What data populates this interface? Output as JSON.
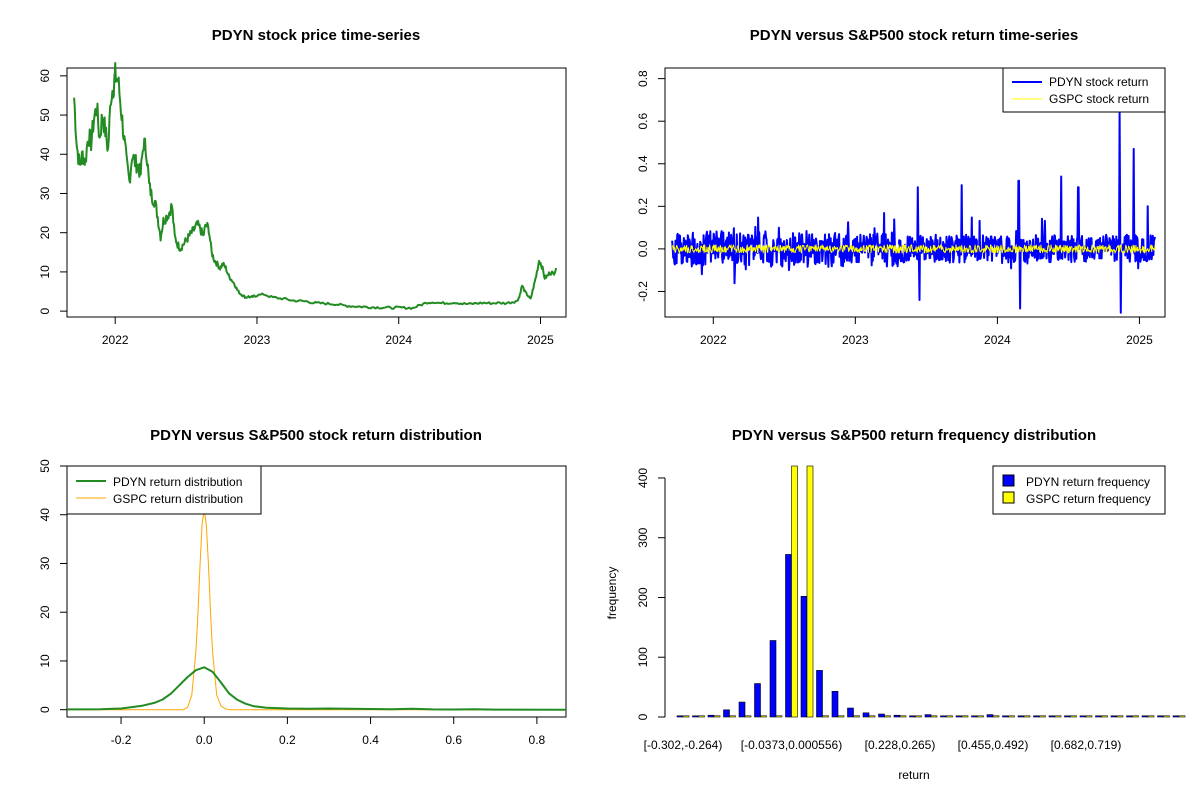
{
  "colors": {
    "pdyn_price": "#228B22",
    "pdyn_return": "#0000FF",
    "gspc_return": "#FFFF00",
    "pdyn_density": "#228B22",
    "gspc_density": "#FFA500",
    "pdyn_bar": "#0000FF",
    "gspc_bar": "#FFFF00"
  },
  "chart_data": [
    {
      "id": "price",
      "type": "line",
      "title": "PDYN stock price time-series",
      "xlabel": "",
      "ylabel": "",
      "xlim": [
        2021.66,
        2025.18
      ],
      "ylim": [
        -1.5,
        62
      ],
      "x_ticks": [
        2022,
        2023,
        2024,
        2025
      ],
      "x_tick_labels": [
        "2022",
        "2023",
        "2024",
        "2025"
      ],
      "y_ticks": [
        0,
        10,
        20,
        30,
        40,
        50,
        60
      ],
      "y_tick_labels": [
        "0",
        "10",
        "20",
        "30",
        "40",
        "50",
        "60"
      ],
      "series": [
        {
          "name": "PDYN price",
          "x": [
            2021.71,
            2021.73,
            2021.75,
            2021.77,
            2021.79,
            2021.81,
            2021.83,
            2021.85,
            2021.87,
            2021.89,
            2021.91,
            2021.93,
            2021.95,
            2021.97,
            2021.99,
            2022.0,
            2022.02,
            2022.04,
            2022.06,
            2022.08,
            2022.1,
            2022.12,
            2022.14,
            2022.16,
            2022.18,
            2022.2,
            2022.22,
            2022.24,
            2022.26,
            2022.28,
            2022.3,
            2022.32,
            2022.34,
            2022.36,
            2022.38,
            2022.4,
            2022.42,
            2022.44,
            2022.46,
            2022.48,
            2022.5,
            2022.52,
            2022.54,
            2022.56,
            2022.58,
            2022.6,
            2022.62,
            2022.64,
            2022.66,
            2022.68,
            2022.7,
            2022.72,
            2022.74,
            2022.76,
            2022.78,
            2022.8,
            2022.82,
            2022.84,
            2022.86,
            2022.88,
            2022.9,
            2022.92,
            2022.94,
            2022.96,
            2022.98,
            2023.0,
            2023.05,
            2023.1,
            2023.15,
            2023.2,
            2023.25,
            2023.3,
            2023.35,
            2023.4,
            2023.45,
            2023.5,
            2023.55,
            2023.6,
            2023.65,
            2023.7,
            2023.75,
            2023.8,
            2023.85,
            2023.9,
            2023.95,
            2024.0,
            2024.05,
            2024.1,
            2024.15,
            2024.2,
            2024.25,
            2024.3,
            2024.35,
            2024.4,
            2024.45,
            2024.5,
            2024.55,
            2024.6,
            2024.65,
            2024.7,
            2024.75,
            2024.8,
            2024.83,
            2024.85,
            2024.87,
            2024.89,
            2024.91,
            2024.93,
            2024.95,
            2024.97,
            2024.99,
            2025.01,
            2025.03,
            2025.05,
            2025.07,
            2025.09,
            2025.11
          ],
          "values": [
            54.5,
            42,
            37,
            40,
            38,
            45,
            43,
            49,
            52,
            44,
            50,
            46,
            41,
            55,
            58,
            60,
            59,
            52,
            45,
            38,
            33,
            40,
            38,
            37,
            35,
            43,
            41,
            32,
            29,
            28,
            24,
            19,
            23,
            24,
            25,
            27,
            19,
            17,
            16,
            17,
            18,
            19,
            20,
            21,
            22,
            21,
            19,
            22,
            21,
            15,
            13,
            12,
            11,
            12,
            11,
            9,
            8,
            7,
            5.5,
            4.5,
            4,
            3.5,
            3.7,
            3.5,
            3.8,
            4.0,
            4.3,
            3.6,
            3.3,
            3.1,
            2.7,
            2.6,
            2.5,
            2.1,
            2.0,
            1.9,
            1.8,
            1.5,
            1.3,
            1.2,
            1.1,
            1.0,
            0.95,
            0.9,
            0.85,
            0.9,
            0.85,
            0.8,
            1.5,
            2.2,
            2.3,
            2.0,
            2.1,
            2.2,
            1.9,
            1.8,
            2.0,
            2.1,
            2.0,
            2.1,
            2.0,
            2.3,
            2.5,
            3.5,
            6.5,
            5.0,
            4.0,
            3.0,
            6.0,
            9.0,
            13.0,
            11.5,
            8.5,
            9.0,
            10.0,
            9.5,
            11.0
          ]
        }
      ]
    },
    {
      "id": "returns_ts",
      "type": "line",
      "title": "PDYN versus S&P500 stock return time-series",
      "xlabel": "",
      "ylabel": "",
      "xlim": [
        2021.66,
        2025.18
      ],
      "ylim": [
        -0.32,
        0.85
      ],
      "x_ticks": [
        2022,
        2023,
        2024,
        2025
      ],
      "x_tick_labels": [
        "2022",
        "2023",
        "2024",
        "2025"
      ],
      "y_ticks": [
        -0.2,
        0.0,
        0.2,
        0.4,
        0.6,
        0.8
      ],
      "y_tick_labels": [
        "-0.2",
        "0.0",
        "0.2",
        "0.4",
        "0.6",
        "0.8"
      ],
      "x_range": [
        2021.71,
        2025.11
      ],
      "legend": [
        "PDYN stock return",
        "GSPC stock return"
      ],
      "legend_position": "top-right",
      "spikes": [
        {
          "x": 2023.44,
          "y": 0.29
        },
        {
          "x": 2023.45,
          "y": -0.24
        },
        {
          "x": 2023.75,
          "y": 0.3
        },
        {
          "x": 2024.15,
          "y": 0.32
        },
        {
          "x": 2024.16,
          "y": -0.28
        },
        {
          "x": 2024.45,
          "y": 0.34
        },
        {
          "x": 2024.57,
          "y": 0.29
        },
        {
          "x": 2024.86,
          "y": 0.65
        },
        {
          "x": 2024.87,
          "y": -0.3
        },
        {
          "x": 2024.96,
          "y": 0.47
        },
        {
          "x": 2025.06,
          "y": 0.2
        }
      ],
      "series": [
        {
          "name": "PDYN stock return",
          "typical_volatility": 0.06,
          "mean": 0.0
        },
        {
          "name": "GSPC stock return",
          "typical_volatility": 0.012,
          "mean": 0.0
        }
      ]
    },
    {
      "id": "density",
      "type": "line",
      "title": "PDYN versus S&P500 stock return distribution",
      "xlabel": "",
      "ylabel": "",
      "xlim": [
        -0.33,
        0.87
      ],
      "ylim": [
        -1.5,
        50
      ],
      "x_ticks": [
        -0.2,
        0.0,
        0.2,
        0.4,
        0.6,
        0.8
      ],
      "x_tick_labels": [
        "-0.2",
        "0.0",
        "0.2",
        "0.4",
        "0.6",
        "0.8"
      ],
      "y_ticks": [
        0,
        10,
        20,
        30,
        40,
        50
      ],
      "y_tick_labels": [
        "0",
        "10",
        "20",
        "30",
        "40",
        "50"
      ],
      "legend": [
        "PDYN return distribution",
        "GSPC return distribution"
      ],
      "legend_position": "top-left",
      "series": [
        {
          "name": "PDYN return distribution",
          "x": [
            -0.33,
            -0.25,
            -0.2,
            -0.15,
            -0.12,
            -0.1,
            -0.08,
            -0.06,
            -0.04,
            -0.02,
            0.0,
            0.02,
            0.04,
            0.06,
            0.08,
            0.1,
            0.12,
            0.15,
            0.2,
            0.25,
            0.3,
            0.35,
            0.4,
            0.45,
            0.5,
            0.55,
            0.6,
            0.65,
            0.7,
            0.87
          ],
          "values": [
            0.05,
            0.1,
            0.25,
            0.8,
            1.4,
            2.1,
            3.3,
            5.0,
            6.7,
            8.1,
            8.7,
            7.8,
            5.6,
            3.3,
            2.0,
            1.2,
            0.7,
            0.4,
            0.25,
            0.18,
            0.25,
            0.2,
            0.15,
            0.1,
            0.2,
            0.05,
            0.03,
            0.08,
            0.02,
            0.0
          ]
        },
        {
          "name": "GSPC return distribution",
          "x": [
            -0.33,
            -0.05,
            -0.04,
            -0.03,
            -0.02,
            -0.015,
            -0.01,
            -0.005,
            0.0,
            0.005,
            0.01,
            0.015,
            0.02,
            0.03,
            0.04,
            0.05,
            0.06,
            0.87
          ],
          "values": [
            0.0,
            0.0,
            0.5,
            3.0,
            12.0,
            20.0,
            30.0,
            38.0,
            41.0,
            38.0,
            30.0,
            20.0,
            12.0,
            3.0,
            0.8,
            0.2,
            0.0,
            0.0
          ]
        }
      ]
    },
    {
      "id": "frequency",
      "type": "bar",
      "title": "PDYN versus S&P500 return frequency distribution",
      "xlabel": "return",
      "ylabel": "frequency",
      "ylim": [
        0,
        420
      ],
      "y_ticks": [
        0,
        100,
        200,
        300,
        400
      ],
      "y_tick_labels": [
        "0",
        "100",
        "200",
        "300",
        "400"
      ],
      "x_tick_labels": [
        "[-0.302,-0.264)",
        "[-0.0373,0.000556)",
        "[0.228,0.265)",
        "[0.455,0.492)",
        "[0.682,0.719)"
      ],
      "x_tick_bins": [
        0,
        7,
        14,
        20,
        26
      ],
      "legend": [
        "PDYN return frequency",
        "GSPC return frequency"
      ],
      "legend_position": "top-right",
      "series": [
        {
          "name": "PDYN return frequency",
          "values": [
            2,
            1,
            3,
            12,
            25,
            56,
            128,
            272,
            202,
            78,
            43,
            15,
            7,
            5,
            3,
            2,
            4,
            1,
            1,
            2,
            4,
            1,
            1,
            2,
            1,
            1,
            1,
            1,
            1,
            1,
            1,
            1,
            1
          ]
        },
        {
          "name": "GSPC return frequency",
          "values": [
            0,
            0,
            0,
            0,
            0,
            0,
            0,
            420,
            430,
            0,
            0,
            0,
            0,
            0,
            0,
            0,
            0,
            0,
            0,
            0,
            0,
            0,
            0,
            0,
            0,
            0,
            0,
            0,
            0,
            0,
            0,
            0,
            0
          ]
        }
      ]
    }
  ]
}
